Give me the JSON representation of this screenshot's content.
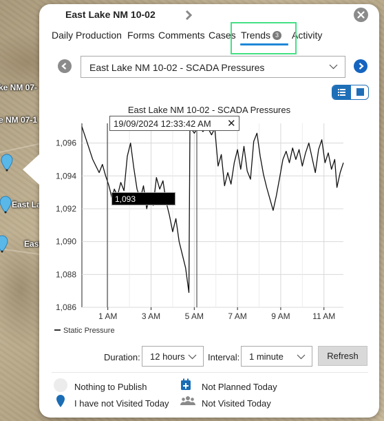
{
  "map": {
    "labels": [
      {
        "text": "ke NM 07-"
      },
      {
        "text": "e NM 07-1"
      },
      {
        "text": "East Lake"
      },
      {
        "text": "East Lak"
      }
    ]
  },
  "popup": {
    "title": "East Lake NM 10-02",
    "tabs": [
      {
        "label": "Daily Production"
      },
      {
        "label": "Forms"
      },
      {
        "label": "Comments"
      },
      {
        "label": "Cases"
      },
      {
        "label": "Trends",
        "badge": "3",
        "active": true
      },
      {
        "label": "Activity"
      }
    ],
    "chart_selector": {
      "selected": "East Lake NM 10-02 - SCADA Pressures"
    },
    "tooltip": {
      "timestamp": "19/09/2024 12:33:42 AM",
      "value": "1,093",
      "close": "✕"
    },
    "controls": {
      "duration_label": "Duration:",
      "duration_value": "12 hours",
      "interval_label": "Interval:",
      "interval_value": "1 minute",
      "refresh_label": "Refresh"
    },
    "legend_status": [
      {
        "label": "Nothing to Publish",
        "icon": "empty-circle-icon"
      },
      {
        "label": "Not Planned Today",
        "icon": "calendar-plus-icon"
      },
      {
        "label": "I have not Visited Today",
        "icon": "map-pin-icon"
      },
      {
        "label": "Not Visited Today",
        "icon": "users-icon"
      }
    ]
  },
  "colors": {
    "accent": "#1e88d8",
    "nav_circle": "#8b8b8b",
    "nav_circle_active": "#1565c0",
    "highlight_box": "#44e084",
    "pin": "#1a6db5"
  },
  "chart_data": {
    "type": "line",
    "title": "East Lake NM 10-02 - SCADA Pressures",
    "xlabel": "",
    "ylabel": "",
    "x_ticks": [
      "1 AM",
      "3 AM",
      "5 AM",
      "7 AM",
      "9 AM",
      "11 AM"
    ],
    "y_ticks": [
      "1,086",
      "1,088",
      "1,090",
      "1,092",
      "1,094",
      "1,096"
    ],
    "ylim": [
      1086,
      1097.2
    ],
    "xlim_hours": [
      -0.2,
      11.9
    ],
    "grid": true,
    "legend_position": "bottom-left",
    "series": [
      {
        "name": "Static Pressure",
        "points": [
          [
            -0.2,
            1097.0
          ],
          [
            0.0,
            1096.2
          ],
          [
            0.15,
            1095.6
          ],
          [
            0.3,
            1095.0
          ],
          [
            0.45,
            1094.6
          ],
          [
            0.6,
            1094.2
          ],
          [
            0.75,
            1094.7
          ],
          [
            0.9,
            1094.0
          ],
          [
            1.05,
            1093.4
          ],
          [
            1.2,
            1092.6
          ],
          [
            1.3,
            1093.2
          ],
          [
            1.45,
            1092.8
          ],
          [
            1.6,
            1093.6
          ],
          [
            1.75,
            1093.1
          ],
          [
            1.9,
            1095.2
          ],
          [
            2.05,
            1096.0
          ],
          [
            2.2,
            1094.5
          ],
          [
            2.35,
            1093.2
          ],
          [
            2.5,
            1092.6
          ],
          [
            2.65,
            1093.4
          ],
          [
            2.8,
            1092.0
          ],
          [
            2.95,
            1092.9
          ],
          [
            3.1,
            1092.2
          ],
          [
            3.25,
            1093.9
          ],
          [
            3.4,
            1093.2
          ],
          [
            3.55,
            1093.7
          ],
          [
            3.7,
            1092.4
          ],
          [
            3.85,
            1091.6
          ],
          [
            4.0,
            1090.6
          ],
          [
            4.15,
            1091.4
          ],
          [
            4.3,
            1090.0
          ],
          [
            4.45,
            1089.2
          ],
          [
            4.6,
            1088.4
          ],
          [
            4.75,
            1086.9
          ],
          [
            4.8,
            1097.0
          ],
          [
            5.0,
            1096.6
          ],
          [
            5.2,
            1097.0
          ],
          [
            5.4,
            1096.7
          ],
          [
            5.6,
            1097.0
          ],
          [
            5.8,
            1096.5
          ],
          [
            5.95,
            1096.9
          ],
          [
            6.1,
            1094.6
          ],
          [
            6.25,
            1095.3
          ],
          [
            6.4,
            1093.4
          ],
          [
            6.55,
            1094.2
          ],
          [
            6.7,
            1093.5
          ],
          [
            6.85,
            1094.8
          ],
          [
            7.0,
            1095.6
          ],
          [
            7.15,
            1094.4
          ],
          [
            7.3,
            1095.8
          ],
          [
            7.45,
            1094.3
          ],
          [
            7.6,
            1093.8
          ],
          [
            7.75,
            1096.1
          ],
          [
            7.9,
            1096.6
          ],
          [
            8.05,
            1095.2
          ],
          [
            8.2,
            1094.1
          ],
          [
            8.35,
            1093.3
          ],
          [
            8.5,
            1092.6
          ],
          [
            8.65,
            1091.9
          ],
          [
            8.8,
            1092.8
          ],
          [
            8.95,
            1093.9
          ],
          [
            9.1,
            1095.0
          ],
          [
            9.25,
            1095.5
          ],
          [
            9.4,
            1094.8
          ],
          [
            9.55,
            1095.7
          ],
          [
            9.7,
            1095.0
          ],
          [
            9.85,
            1095.6
          ],
          [
            10.0,
            1094.6
          ],
          [
            10.15,
            1095.4
          ],
          [
            10.3,
            1096.0
          ],
          [
            10.45,
            1095.1
          ],
          [
            10.6,
            1094.2
          ],
          [
            10.75,
            1095.6
          ],
          [
            10.9,
            1096.2
          ],
          [
            11.05,
            1094.8
          ],
          [
            11.2,
            1095.4
          ],
          [
            11.35,
            1094.4
          ],
          [
            11.5,
            1095.0
          ],
          [
            11.6,
            1093.3
          ],
          [
            11.75,
            1094.2
          ],
          [
            11.9,
            1094.8
          ]
        ]
      }
    ]
  }
}
